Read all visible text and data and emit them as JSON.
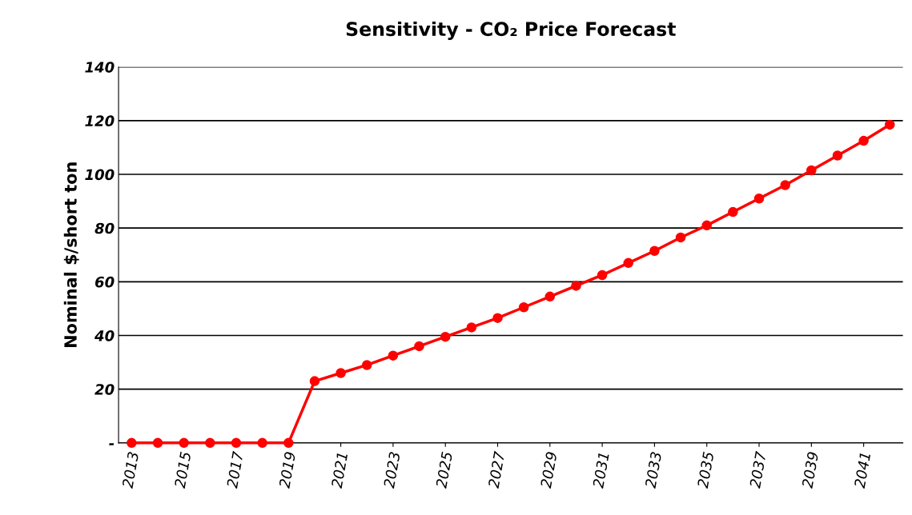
{
  "chart_data": {
    "type": "line",
    "title": "Sensitivity - CO₂ Price Forecast",
    "ylabel": "Nominal $/short ton",
    "x": [
      2013,
      2014,
      2015,
      2016,
      2017,
      2018,
      2019,
      2020,
      2021,
      2022,
      2023,
      2024,
      2025,
      2026,
      2027,
      2028,
      2029,
      2030,
      2031,
      2032,
      2033,
      2034,
      2035,
      2036,
      2037,
      2038,
      2039,
      2040,
      2041,
      2042
    ],
    "series": [
      {
        "color": "#ff0000",
        "values": [
          0,
          0,
          0,
          0,
          0,
          0,
          0,
          23,
          26,
          29,
          32.5,
          36,
          39.5,
          43,
          46.5,
          50.5,
          54.5,
          58.5,
          62.5,
          67,
          71.5,
          76.5,
          81,
          86,
          91,
          96,
          101.5,
          107,
          112.5,
          118.5
        ]
      }
    ],
    "xlim": [
      2012.5,
      2042.5
    ],
    "xticks": [
      2013,
      2015,
      2017,
      2019,
      2021,
      2023,
      2025,
      2027,
      2029,
      2031,
      2033,
      2035,
      2037,
      2039,
      2041
    ],
    "ylim": [
      0,
      140
    ],
    "yticks": [
      {
        "value": 0,
        "label": "-"
      },
      20,
      40,
      60,
      80,
      100,
      120,
      140
    ],
    "grid": "y",
    "marker": "circle",
    "line_style": "solid"
  }
}
